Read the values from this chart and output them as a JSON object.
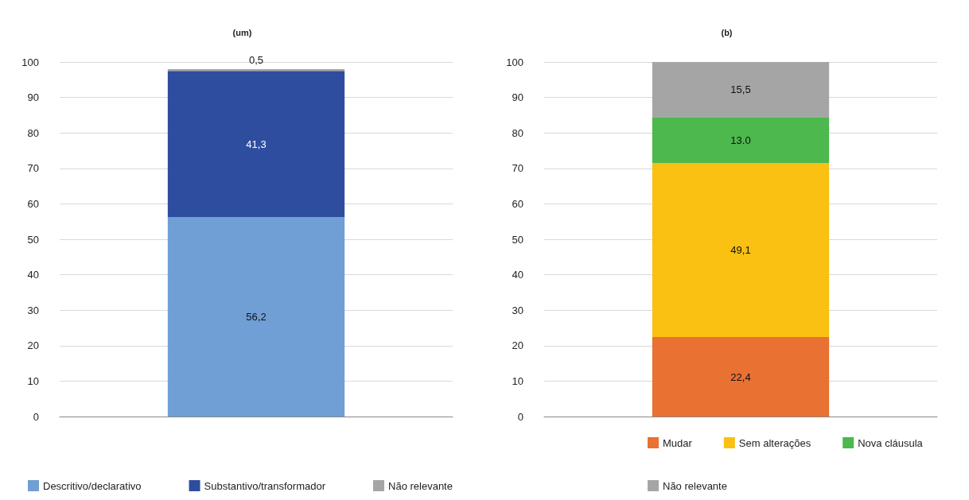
{
  "chart_data": [
    {
      "type": "bar",
      "title": "(um)",
      "categories": [
        null
      ],
      "stacked": true,
      "ylim": [
        0,
        100
      ],
      "yticks": [
        0,
        10,
        20,
        30,
        40,
        50,
        60,
        70,
        80,
        90,
        100
      ],
      "grid": "y",
      "legend": "bottom left",
      "series": [
        {
          "name": "Descritivo/declarativo",
          "color": "#6f9fd4",
          "values": [
            56.2
          ],
          "value_labels": [
            "56,2"
          ]
        },
        {
          "name": "Substantivo/transformador",
          "color": "#2e4d9f",
          "values": [
            41.3
          ],
          "value_labels": [
            "41,3"
          ]
        },
        {
          "name": "Não relevante",
          "color": "#a5a5a5",
          "values": [
            0.5
          ],
          "value_labels": [
            "0,5"
          ]
        }
      ]
    },
    {
      "type": "bar",
      "title": "(b)",
      "categories": [
        null
      ],
      "stacked": true,
      "ylim": [
        0,
        100
      ],
      "yticks": [
        0,
        10,
        20,
        30,
        40,
        50,
        60,
        70,
        80,
        90,
        100
      ],
      "grid": "y",
      "legend": "bottom",
      "series": [
        {
          "name": "Mudar",
          "color": "#e97132",
          "values": [
            22.4
          ],
          "value_labels": [
            "22,4"
          ]
        },
        {
          "name": "Sem alterações",
          "color": "#fac012",
          "values": [
            49.1
          ],
          "value_labels": [
            "49,1"
          ]
        },
        {
          "name": "Nova cláusula",
          "color": "#4cb84d",
          "values": [
            13.0
          ],
          "value_labels": [
            "13.0"
          ]
        },
        {
          "name": "Não relevante",
          "color": "#a5a5a5",
          "values": [
            15.5
          ],
          "value_labels": [
            "15,5"
          ]
        }
      ]
    }
  ]
}
